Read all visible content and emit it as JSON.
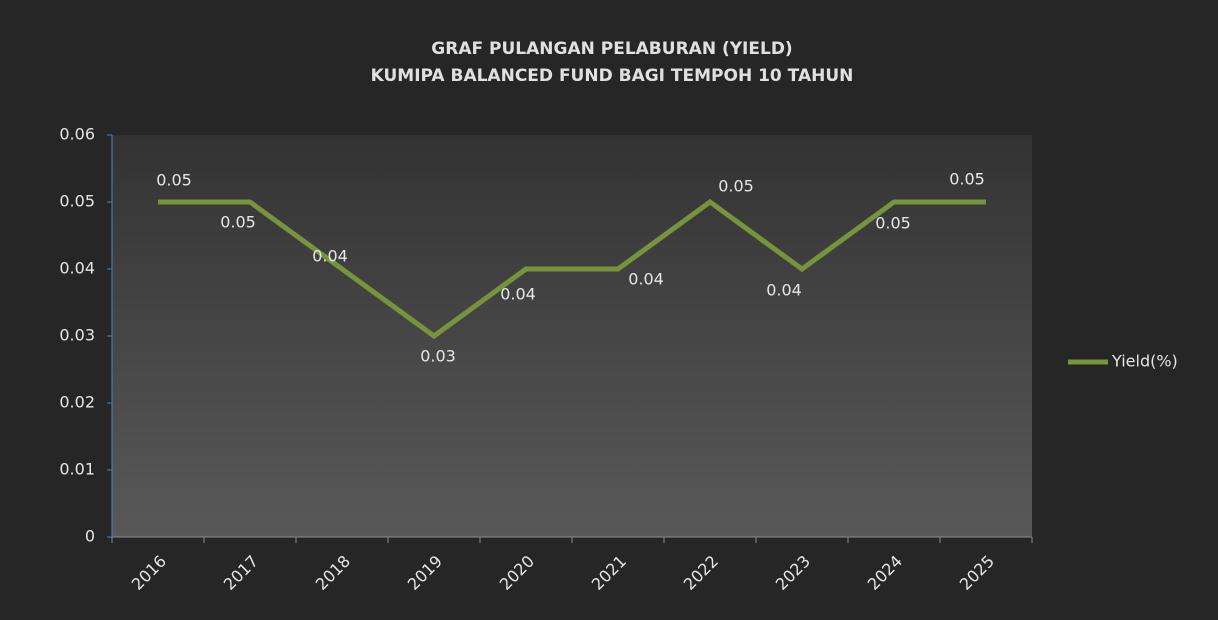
{
  "chart_data": {
    "type": "line",
    "title": "GRAF PULANGAN PELABURAN (YIELD)",
    "subtitle": "KUMIPA BALANCED FUND BAGI TEMPOH 10 TAHUN",
    "categories": [
      "2016",
      "2017",
      "2018",
      "2019",
      "2020",
      "2021",
      "2022",
      "2023",
      "2024",
      "2025"
    ],
    "series": [
      {
        "name": "Yield(%)",
        "color": "#77933c",
        "values": [
          0.05,
          0.05,
          0.04,
          0.03,
          0.04,
          0.04,
          0.05,
          0.04,
          0.05,
          0.05
        ]
      }
    ],
    "ylim": [
      0,
      0.06
    ],
    "yticks": [
      0,
      0.01,
      0.02,
      0.03,
      0.04,
      0.05,
      0.06
    ],
    "grid": false,
    "legend": "right"
  }
}
